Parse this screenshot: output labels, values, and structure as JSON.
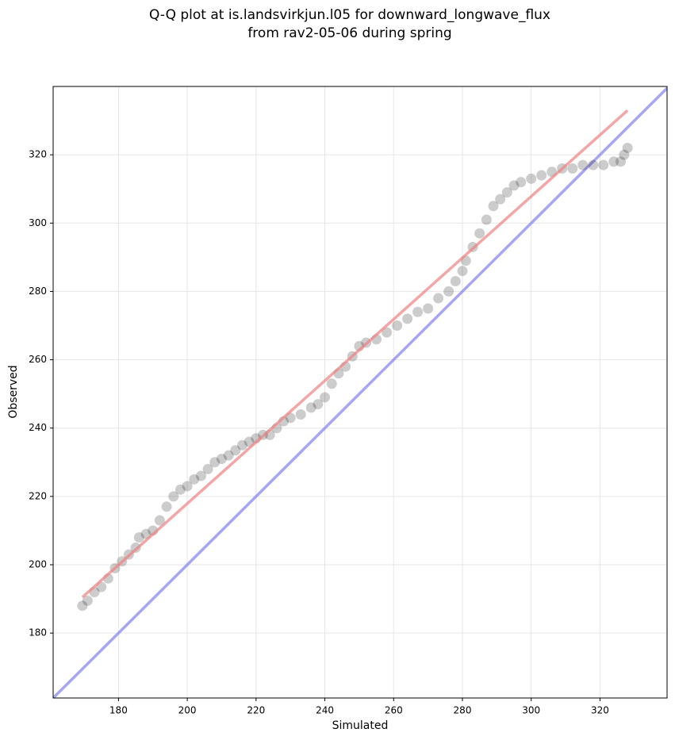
{
  "chart_data": {
    "type": "scatter",
    "title": [
      "Q-Q plot at is.landsvirkjun.l05 for downward_longwave_flux",
      "from rav2-05-06 during spring"
    ],
    "xlabel": "Simulated",
    "ylabel": "Observed",
    "x": [
      169.5,
      171,
      173,
      175,
      177,
      179,
      181,
      183,
      185,
      186,
      188,
      190,
      192,
      194,
      196,
      198,
      200,
      202,
      204,
      206,
      208,
      210,
      212,
      214,
      216,
      218,
      220,
      222,
      224,
      226,
      228,
      230,
      233,
      236,
      238,
      240,
      242,
      244,
      246,
      248,
      250,
      252,
      255,
      258,
      261,
      264,
      267,
      270,
      273,
      276,
      278,
      280,
      281,
      283,
      285,
      287,
      289,
      291,
      293,
      295,
      297,
      300,
      303,
      306,
      309,
      312,
      315,
      318,
      321,
      324,
      326,
      327,
      328
    ],
    "values": [
      188,
      189.5,
      192,
      193.5,
      196,
      199,
      201,
      203,
      205,
      208,
      209,
      210,
      213,
      217,
      220,
      222,
      223,
      225,
      226,
      228,
      230,
      231,
      232,
      233.5,
      235,
      236,
      237,
      238,
      238,
      240,
      242,
      243,
      244,
      246,
      247,
      249,
      253,
      256,
      258,
      261,
      264,
      265,
      266,
      268,
      270,
      272,
      274,
      275,
      278,
      280,
      283,
      286,
      289,
      293,
      297,
      301,
      305,
      307,
      309,
      311,
      312,
      313,
      314,
      315,
      316,
      316,
      317,
      317,
      317,
      318,
      318,
      320,
      322
    ],
    "color": "#000000",
    "fit_line": {
      "x": [
        169.5,
        328
      ],
      "values": [
        190.5,
        333
      ],
      "color": "#f08080"
    },
    "reference_line": {
      "x": [
        161,
        339.5
      ],
      "values": [
        161,
        339.5
      ],
      "color": "#8080f0"
    },
    "xlim": [
      161,
      339.5
    ],
    "ylim": [
      161,
      340
    ],
    "xticks": [
      180,
      200,
      220,
      240,
      260,
      280,
      300,
      320
    ],
    "yticks": [
      180,
      200,
      220,
      240,
      260,
      280,
      300,
      320
    ],
    "grid": true
  }
}
